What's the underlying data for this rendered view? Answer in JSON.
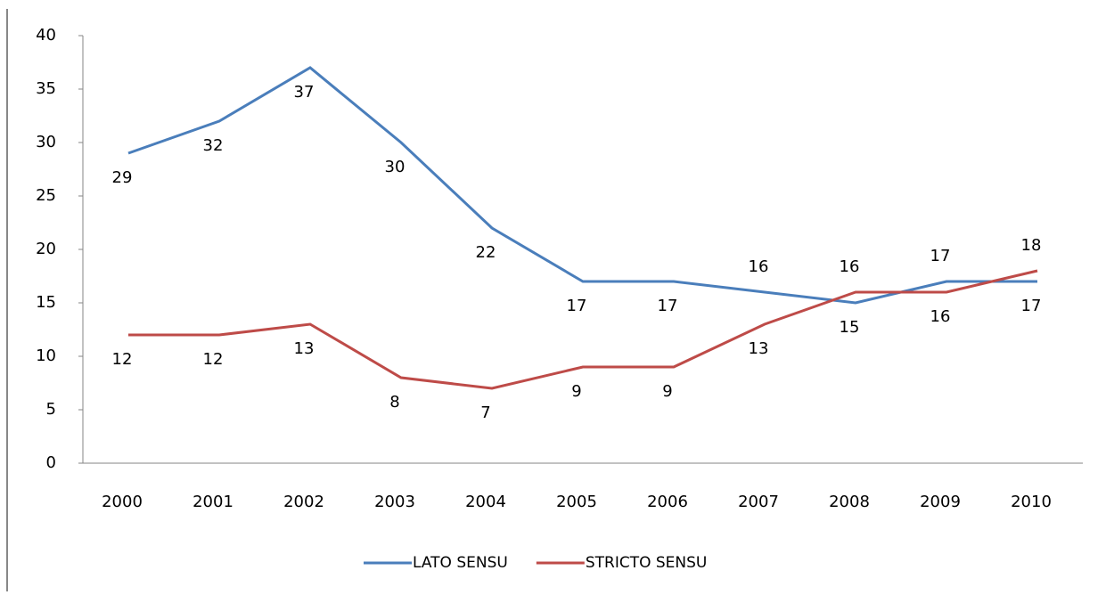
{
  "chart_data": {
    "type": "line",
    "categories": [
      "2000",
      "2001",
      "2002",
      "2003",
      "2004",
      "2005",
      "2006",
      "2007",
      "2008",
      "2009",
      "2010"
    ],
    "series": [
      {
        "name": "LATO SENSU",
        "color": "#4a7ebb",
        "values": [
          29,
          32,
          37,
          30,
          22,
          17,
          17,
          16,
          15,
          17,
          17
        ]
      },
      {
        "name": "STRICTO SENSU",
        "color": "#be4b48",
        "values": [
          12,
          12,
          13,
          8,
          7,
          9,
          9,
          13,
          16,
          16,
          18
        ]
      }
    ],
    "ylim": [
      0,
      40
    ],
    "yticks": [
      0,
      5,
      10,
      15,
      20,
      25,
      30,
      35,
      40
    ],
    "grid": false,
    "legend": "bottom"
  }
}
